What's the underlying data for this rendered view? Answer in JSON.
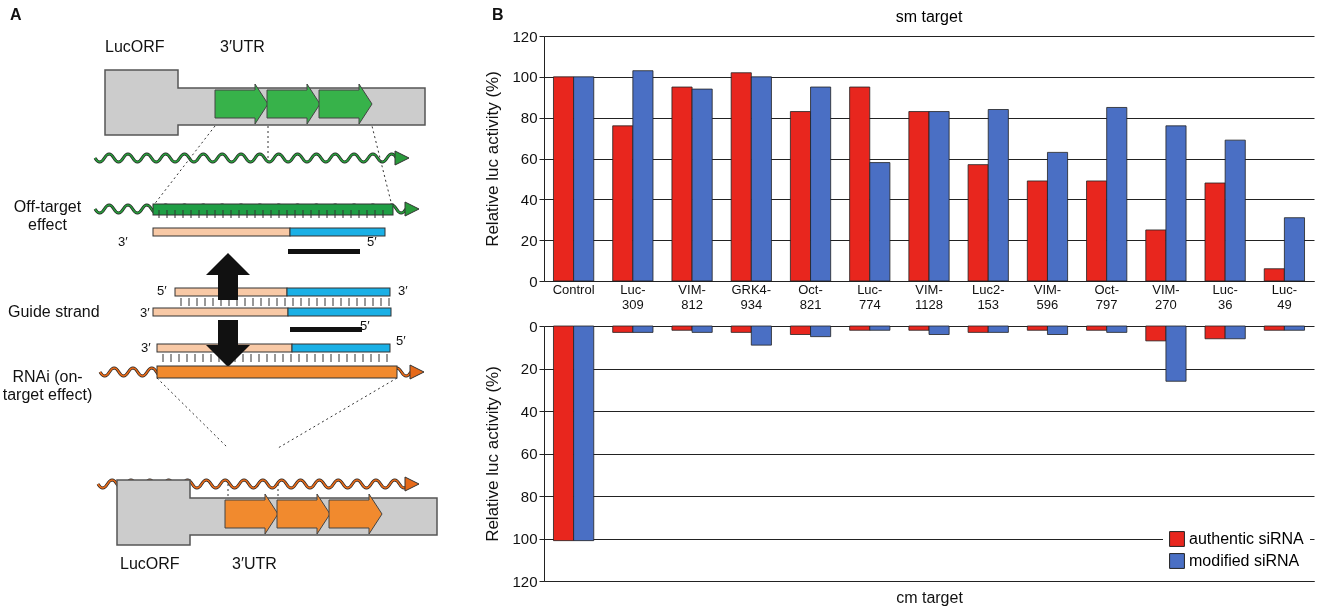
{
  "chart_data": [
    {
      "type": "other",
      "title": "A",
      "annotations": [
        "LucORF",
        "3′UTR",
        "Off-target effect",
        "3′",
        "5′",
        "5′",
        "3′",
        "Guide strand",
        "3′",
        "5′",
        "3′",
        "5′",
        "RNAi (on-target effect)",
        "LucORF",
        "3′UTR"
      ]
    },
    {
      "type": "bar",
      "title": "sm target",
      "ylabel": "Relative luc activity (%)",
      "annotations": [
        "B"
      ],
      "categories": [
        "Control",
        "Luc-309",
        "VIM-812",
        "GRK4-934",
        "Oct-821",
        "Luc-774",
        "VIM-1128",
        "Luc2-153",
        "VIM-596",
        "Oct-797",
        "VIM-270",
        "Luc-36",
        "Luc-49"
      ],
      "series": [
        {
          "color": "#e8261e",
          "values": [
            100,
            76,
            95,
            102,
            83,
            95,
            83,
            57,
            49,
            49,
            25,
            48,
            6
          ]
        },
        {
          "color": "#4a6fc4",
          "values": [
            100,
            103,
            94,
            100,
            95,
            58,
            83,
            84,
            63,
            85,
            76,
            69,
            31
          ]
        }
      ],
      "ylim": [
        0,
        120
      ],
      "yticks": [
        0,
        20,
        40,
        60,
        80,
        100,
        120
      ],
      "grid": "y"
    },
    {
      "type": "bar",
      "xlabel": "cm target",
      "ylabel": "Relative luc activity (%)",
      "categories": [
        null,
        null,
        null,
        null,
        null,
        null,
        null,
        null,
        null,
        null,
        null,
        null,
        null
      ],
      "series": [
        {
          "name": "authentic siRNA",
          "color": "#e8261e",
          "values": [
            101,
            3,
            2,
            3,
            4,
            2,
            2,
            3,
            2,
            2,
            7,
            6,
            2
          ]
        },
        {
          "name": "modified siRNA",
          "color": "#4a6fc4",
          "values": [
            101,
            3,
            3,
            9,
            5,
            2,
            4,
            3,
            4,
            3,
            26,
            6,
            2
          ]
        }
      ],
      "ylim": [
        120,
        0
      ],
      "yticks": [
        0,
        20,
        40,
        60,
        80,
        100,
        120
      ],
      "grid": "y",
      "tick_labels": "y",
      "legend": "bottom right"
    }
  ]
}
